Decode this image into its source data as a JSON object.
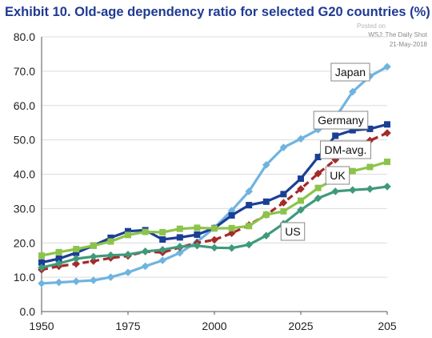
{
  "header": {
    "title": "Exhibit 10. Old-age dependency ratio for selected G20 countries (%)",
    "source_posted": "Posted on",
    "source_name": "WSJ: The Daily Shot",
    "source_date": "21-May-2018"
  },
  "chart_data": {
    "type": "line",
    "title": "Exhibit 10. Old-age dependency ratio for selected G20 countries (%)",
    "xlabel": "",
    "ylabel": "",
    "xlim": [
      1950,
      2050
    ],
    "ylim": [
      0,
      80
    ],
    "x_tick_labels": [
      "1950",
      "1975",
      "2000",
      "2025",
      "205"
    ],
    "y_tick_labels": [
      "0.0",
      "10.0",
      "20.0",
      "30.0",
      "40.0",
      "50.0",
      "60.0",
      "70.0",
      "80.0"
    ],
    "grid": true,
    "x": [
      1950,
      1955,
      1960,
      1965,
      1970,
      1975,
      1980,
      1985,
      1990,
      1995,
      2000,
      2005,
      2010,
      2015,
      2020,
      2025,
      2030,
      2035,
      2040,
      2045,
      2050
    ],
    "series": [
      {
        "name": "Japan",
        "color": "#6fb4df",
        "marker": "diamond",
        "dashed": false,
        "values": [
          8.2,
          8.5,
          8.8,
          9.1,
          10.0,
          11.4,
          13.2,
          14.9,
          17.1,
          20.3,
          24.4,
          29.4,
          35.0,
          42.7,
          47.8,
          50.3,
          53.0,
          56.5,
          64.0,
          68.5,
          71.3
        ]
      },
      {
        "name": "Germany",
        "color": "#1b3f95",
        "marker": "square",
        "dashed": false,
        "values": [
          14.3,
          15.4,
          17.1,
          19.2,
          21.5,
          23.4,
          23.7,
          21.0,
          21.6,
          22.4,
          24.3,
          28.0,
          31.0,
          32.0,
          34.2,
          38.7,
          45.0,
          51.2,
          52.8,
          53.2,
          54.5
        ]
      },
      {
        "name": "DM-avg.",
        "color": "#a52a2a",
        "marker": "diamond",
        "dashed": true,
        "values": [
          12.2,
          13.2,
          13.9,
          14.7,
          15.6,
          16.2,
          17.5,
          17.2,
          18.7,
          20.0,
          20.9,
          22.8,
          25.2,
          28.2,
          31.7,
          35.7,
          40.2,
          44.2,
          47.2,
          49.8,
          52.0
        ]
      },
      {
        "name": "UK",
        "color": "#8dc34b",
        "marker": "square",
        "dashed": false,
        "values": [
          16.3,
          17.3,
          18.2,
          19.2,
          20.4,
          22.3,
          23.2,
          23.1,
          24.1,
          24.4,
          24.2,
          24.3,
          24.9,
          28.2,
          29.2,
          32.3,
          36.0,
          38.6,
          40.9,
          42.1,
          43.6
        ]
      },
      {
        "name": "US",
        "color": "#3f9a7c",
        "marker": "diamond",
        "dashed": false,
        "values": [
          12.8,
          14.0,
          15.4,
          16.0,
          16.4,
          16.6,
          17.5,
          18.0,
          18.9,
          19.2,
          18.6,
          18.5,
          19.5,
          22.1,
          25.6,
          29.6,
          33.0,
          35.0,
          35.4,
          35.7,
          36.4
        ]
      }
    ],
    "annotations": [
      {
        "series": "Japan",
        "text": "Japan",
        "boxed": true
      },
      {
        "series": "Germany",
        "text": "Germany",
        "boxed": true
      },
      {
        "series": "DM-avg.",
        "text": "DM-avg.",
        "boxed": true
      },
      {
        "series": "UK",
        "text": "UK",
        "boxed": true
      },
      {
        "series": "US",
        "text": "US",
        "boxed": true
      }
    ]
  }
}
